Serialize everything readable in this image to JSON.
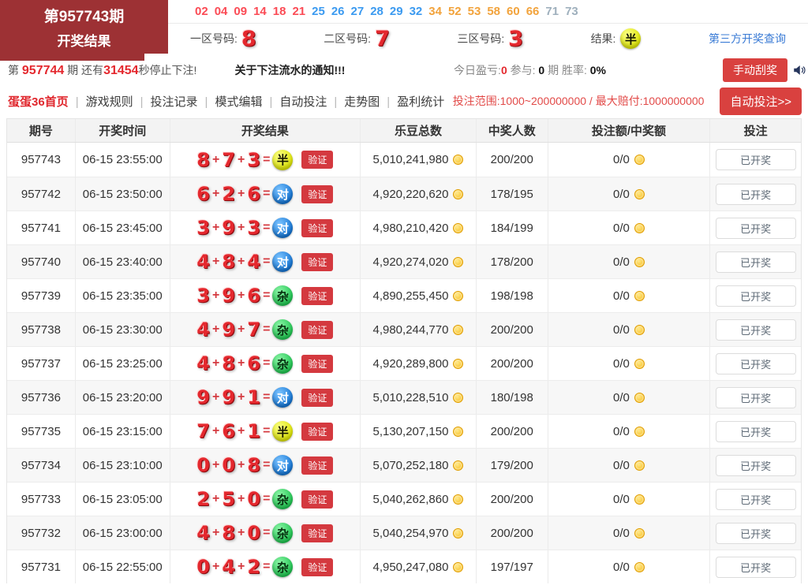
{
  "colors": {
    "header_red": "#9d3134",
    "button_red": "#d9413f",
    "number_red": "#e4282e",
    "link_blue": "#3a7bd5",
    "badge_half_yellow": "#dde400",
    "badge_pair_blue": "#0d6fd1",
    "badge_mixed_green": "#17c24a",
    "coin_gold": "#f5b60a"
  },
  "header": {
    "period_box": {
      "line1": "第957743期",
      "line2": "开奖结果"
    },
    "missing_numbers": [
      {
        "value": "02",
        "group": "red"
      },
      {
        "value": "04",
        "group": "red"
      },
      {
        "value": "09",
        "group": "red"
      },
      {
        "value": "14",
        "group": "red"
      },
      {
        "value": "18",
        "group": "red"
      },
      {
        "value": "21",
        "group": "red"
      },
      {
        "value": "25",
        "group": "blue"
      },
      {
        "value": "26",
        "group": "blue"
      },
      {
        "value": "27",
        "group": "blue"
      },
      {
        "value": "28",
        "group": "blue"
      },
      {
        "value": "29",
        "group": "blue"
      },
      {
        "value": "32",
        "group": "blue"
      },
      {
        "value": "34",
        "group": "orange"
      },
      {
        "value": "52",
        "group": "orange"
      },
      {
        "value": "53",
        "group": "orange"
      },
      {
        "value": "58",
        "group": "orange"
      },
      {
        "value": "60",
        "group": "orange"
      },
      {
        "value": "66",
        "group": "orange"
      },
      {
        "value": "71",
        "group": "gray"
      },
      {
        "value": "73",
        "group": "gray"
      }
    ],
    "zones": [
      {
        "label": "一区号码:",
        "value": "8"
      },
      {
        "label": "二区号码:",
        "value": "7"
      },
      {
        "label": "三区号码:",
        "value": "3"
      }
    ],
    "result_label": "结果:",
    "result": {
      "text": "半",
      "type": "half"
    },
    "third_party_link": "第三方开奖查询"
  },
  "countdown": {
    "prefix": "第 ",
    "period": "957744",
    "mid": " 期 还有",
    "seconds": "31454",
    "suffix": "秒停止下注!",
    "notice": "关于下注流水的通知!!!",
    "stats": {
      "profit_label": "今日盈亏:",
      "profit": "0",
      "join_label": " 参与: ",
      "join": "0",
      "join_unit": " 期 ",
      "rate_label": "胜率: ",
      "rate": "0%"
    },
    "manual_button": "手动刮奖"
  },
  "nav": {
    "items": [
      {
        "label": "蛋蛋36首页",
        "active": true
      },
      {
        "label": "游戏规则",
        "active": false
      },
      {
        "label": "投注记录",
        "active": false
      },
      {
        "label": "模式编辑",
        "active": false
      },
      {
        "label": "自动投注",
        "active": false
      },
      {
        "label": "走势图",
        "active": false
      },
      {
        "label": "盈利统计",
        "active": false
      }
    ],
    "range_text": "投注范围:1000~200000000 / 最大赔付:1000000000",
    "auto_button": "自动投注>>"
  },
  "table": {
    "headers": [
      "期号",
      "开奖时间",
      "开奖结果",
      "乐豆总数",
      "中奖人数",
      "投注额/中奖额",
      "投注"
    ],
    "verify_label": "验证",
    "open_button_label": "已开奖",
    "plus": "+",
    "equals": "=",
    "rows": [
      {
        "period": "957743",
        "time": "06-15 23:55:00",
        "n1": "8",
        "n2": "7",
        "n3": "3",
        "result": "半",
        "result_type": "half",
        "total": "5,010,241,980",
        "winners": "200/200",
        "bet": "0/0"
      },
      {
        "period": "957742",
        "time": "06-15 23:50:00",
        "n1": "6",
        "n2": "2",
        "n3": "6",
        "result": "对",
        "result_type": "pair",
        "total": "4,920,220,620",
        "winners": "178/195",
        "bet": "0/0"
      },
      {
        "period": "957741",
        "time": "06-15 23:45:00",
        "n1": "3",
        "n2": "9",
        "n3": "3",
        "result": "对",
        "result_type": "pair",
        "total": "4,980,210,420",
        "winners": "184/199",
        "bet": "0/0"
      },
      {
        "period": "957740",
        "time": "06-15 23:40:00",
        "n1": "4",
        "n2": "8",
        "n3": "4",
        "result": "对",
        "result_type": "pair",
        "total": "4,920,274,020",
        "winners": "178/200",
        "bet": "0/0"
      },
      {
        "period": "957739",
        "time": "06-15 23:35:00",
        "n1": "3",
        "n2": "9",
        "n3": "6",
        "result": "杂",
        "result_type": "mixed",
        "total": "4,890,255,450",
        "winners": "198/198",
        "bet": "0/0"
      },
      {
        "period": "957738",
        "time": "06-15 23:30:00",
        "n1": "4",
        "n2": "9",
        "n3": "7",
        "result": "杂",
        "result_type": "mixed",
        "total": "4,980,244,770",
        "winners": "200/200",
        "bet": "0/0"
      },
      {
        "period": "957737",
        "time": "06-15 23:25:00",
        "n1": "4",
        "n2": "8",
        "n3": "6",
        "result": "杂",
        "result_type": "mixed",
        "total": "4,920,289,800",
        "winners": "200/200",
        "bet": "0/0"
      },
      {
        "period": "957736",
        "time": "06-15 23:20:00",
        "n1": "9",
        "n2": "9",
        "n3": "1",
        "result": "对",
        "result_type": "pair",
        "total": "5,010,228,510",
        "winners": "180/198",
        "bet": "0/0"
      },
      {
        "period": "957735",
        "time": "06-15 23:15:00",
        "n1": "7",
        "n2": "6",
        "n3": "1",
        "result": "半",
        "result_type": "half",
        "total": "5,130,207,150",
        "winners": "200/200",
        "bet": "0/0"
      },
      {
        "period": "957734",
        "time": "06-15 23:10:00",
        "n1": "0",
        "n2": "0",
        "n3": "8",
        "result": "对",
        "result_type": "pair",
        "total": "5,070,252,180",
        "winners": "179/200",
        "bet": "0/0"
      },
      {
        "period": "957733",
        "time": "06-15 23:05:00",
        "n1": "2",
        "n2": "5",
        "n3": "0",
        "result": "杂",
        "result_type": "mixed",
        "total": "5,040,262,860",
        "winners": "200/200",
        "bet": "0/0"
      },
      {
        "period": "957732",
        "time": "06-15 23:00:00",
        "n1": "4",
        "n2": "8",
        "n3": "0",
        "result": "杂",
        "result_type": "mixed",
        "total": "5,040,254,970",
        "winners": "200/200",
        "bet": "0/0"
      },
      {
        "period": "957731",
        "time": "06-15 22:55:00",
        "n1": "0",
        "n2": "4",
        "n3": "2",
        "result": "杂",
        "result_type": "mixed",
        "total": "4,950,247,080",
        "winners": "197/197",
        "bet": "0/0"
      }
    ]
  }
}
